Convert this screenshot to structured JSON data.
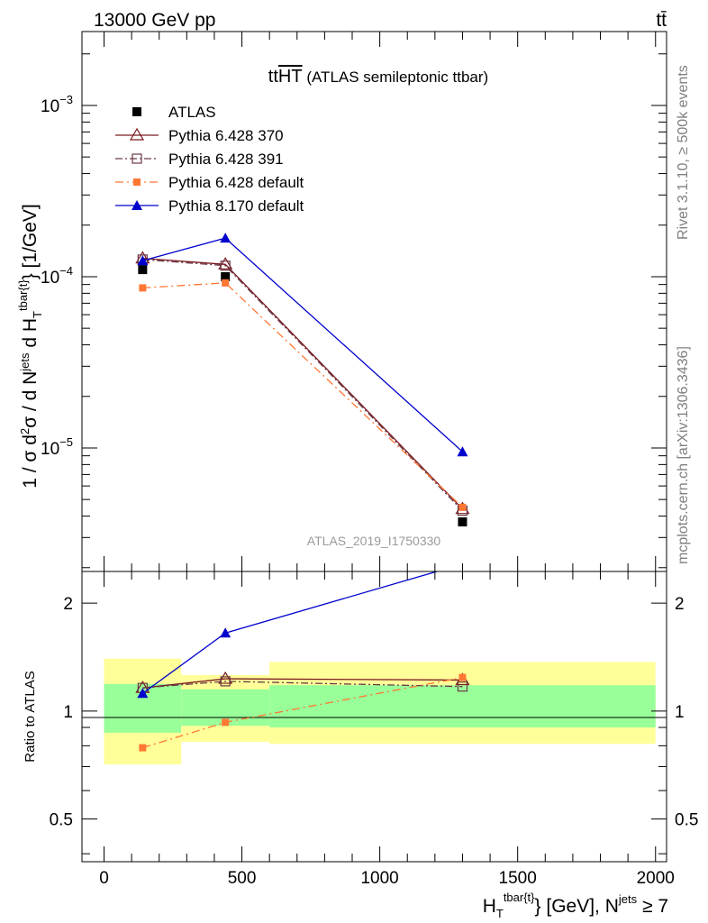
{
  "header": {
    "left": "13000 GeV pp",
    "right": "tt̄"
  },
  "side_labels": {
    "top": "Rivet 3.1.10, ≥ 500k events",
    "bottom": "mcplots.cern.ch [arXiv:1306.3436]"
  },
  "chart_data": {
    "type": "line",
    "title_main": "tt",
    "title_overlined": "HT",
    "title_suffix": " (ATLAS semileptonic ttbar)",
    "watermark": "ATLAS_2019_I1750330",
    "ylabel": "1 / σ d²σ /  d Nʲᵉᵗˢ d H_T^{tbar{t}} [1/GeV]",
    "ylabel_parts": {
      "a": "1 / σ d",
      "a_sup": "2",
      "b": "σ /  d N",
      "b_sup": "jets",
      "c": " d H",
      "c_sub": "T",
      "c_sup": "tbar{t}",
      "d": "} [1/GeV]"
    },
    "xlabel_parts": {
      "a": "H",
      "a_sub": "T",
      "a_sup": "tbar{t}",
      "b": "} [GeV], N",
      "b_sup": "jets",
      "c": " ≥ 7"
    },
    "ratio_ylabel": "Ratio to ATLAS",
    "xlim": [
      -80,
      2040
    ],
    "main_ylim": [
      1.9e-06,
      0.0027
    ],
    "main_yscale": "log",
    "main_yticks": [
      {
        "value": 1e-05,
        "base": "10",
        "exp": "−5"
      },
      {
        "value": 0.0001,
        "base": "10",
        "exp": "−4"
      },
      {
        "value": 0.001,
        "base": "10",
        "exp": "−3"
      }
    ],
    "ratio_ylim": [
      0.38,
      2.45
    ],
    "ratio_yscale": "log",
    "ratio_yticks": [
      {
        "value": 0.5,
        "label": "0.5"
      },
      {
        "value": 1,
        "label": "1"
      },
      {
        "value": 2,
        "label": "2"
      }
    ],
    "xticks": [
      0,
      500,
      1000,
      1500,
      2000
    ],
    "xtick_labels": [
      "0",
      "500",
      "1000",
      "1500",
      "2000"
    ],
    "bins": [
      [
        0,
        280
      ],
      [
        280,
        600
      ],
      [
        600,
        2000
      ]
    ],
    "x": [
      140,
      440,
      1300
    ],
    "uncertainty_bands": {
      "inner_color": "#99ff99",
      "outer_color": "#ffff99",
      "inner": [
        [
          0.87,
          1.19
        ],
        [
          0.91,
          1.15
        ],
        [
          0.9,
          1.18
        ]
      ],
      "outer": [
        [
          0.71,
          1.4
        ],
        [
          0.82,
          1.26
        ],
        [
          0.81,
          1.37
        ]
      ]
    },
    "legend_position": "top-left",
    "series": [
      {
        "name": "ATLAS",
        "color": "#000000",
        "marker": "square-filled",
        "dash": "",
        "values": [
          0.00011,
          0.0001,
          3.7e-06
        ],
        "ratio": [
          1,
          1,
          1
        ]
      },
      {
        "name": "Pythia 6.428 370",
        "color": "#7a1a22",
        "marker": "triangle-open",
        "dash": "",
        "values": [
          0.000128,
          0.000118,
          4.4e-06
        ],
        "ratio": [
          1.16,
          1.23,
          1.22
        ]
      },
      {
        "name": "Pythia 6.428 391",
        "color": "#6b3a45",
        "marker": "square-open",
        "dash": "8,3,2,3",
        "values": [
          0.000126,
          0.000116,
          4.3e-06
        ],
        "ratio": [
          1.16,
          1.21,
          1.17
        ]
      },
      {
        "name": "Pythia 6.428 default",
        "color": "#ff7733",
        "marker": "square-filled-small",
        "dash": "9,4,2,4",
        "values": [
          8.6e-05,
          9.2e-05,
          4.5e-06
        ],
        "ratio": [
          0.79,
          0.93,
          1.24
        ]
      },
      {
        "name": "Pythia 8.170 default",
        "color": "#0000cc",
        "marker": "triangle-filled",
        "dash": "",
        "values": [
          0.000124,
          0.000168,
          9.5e-06
        ],
        "ratio": [
          1.12,
          1.65,
          2.57
        ]
      }
    ]
  }
}
